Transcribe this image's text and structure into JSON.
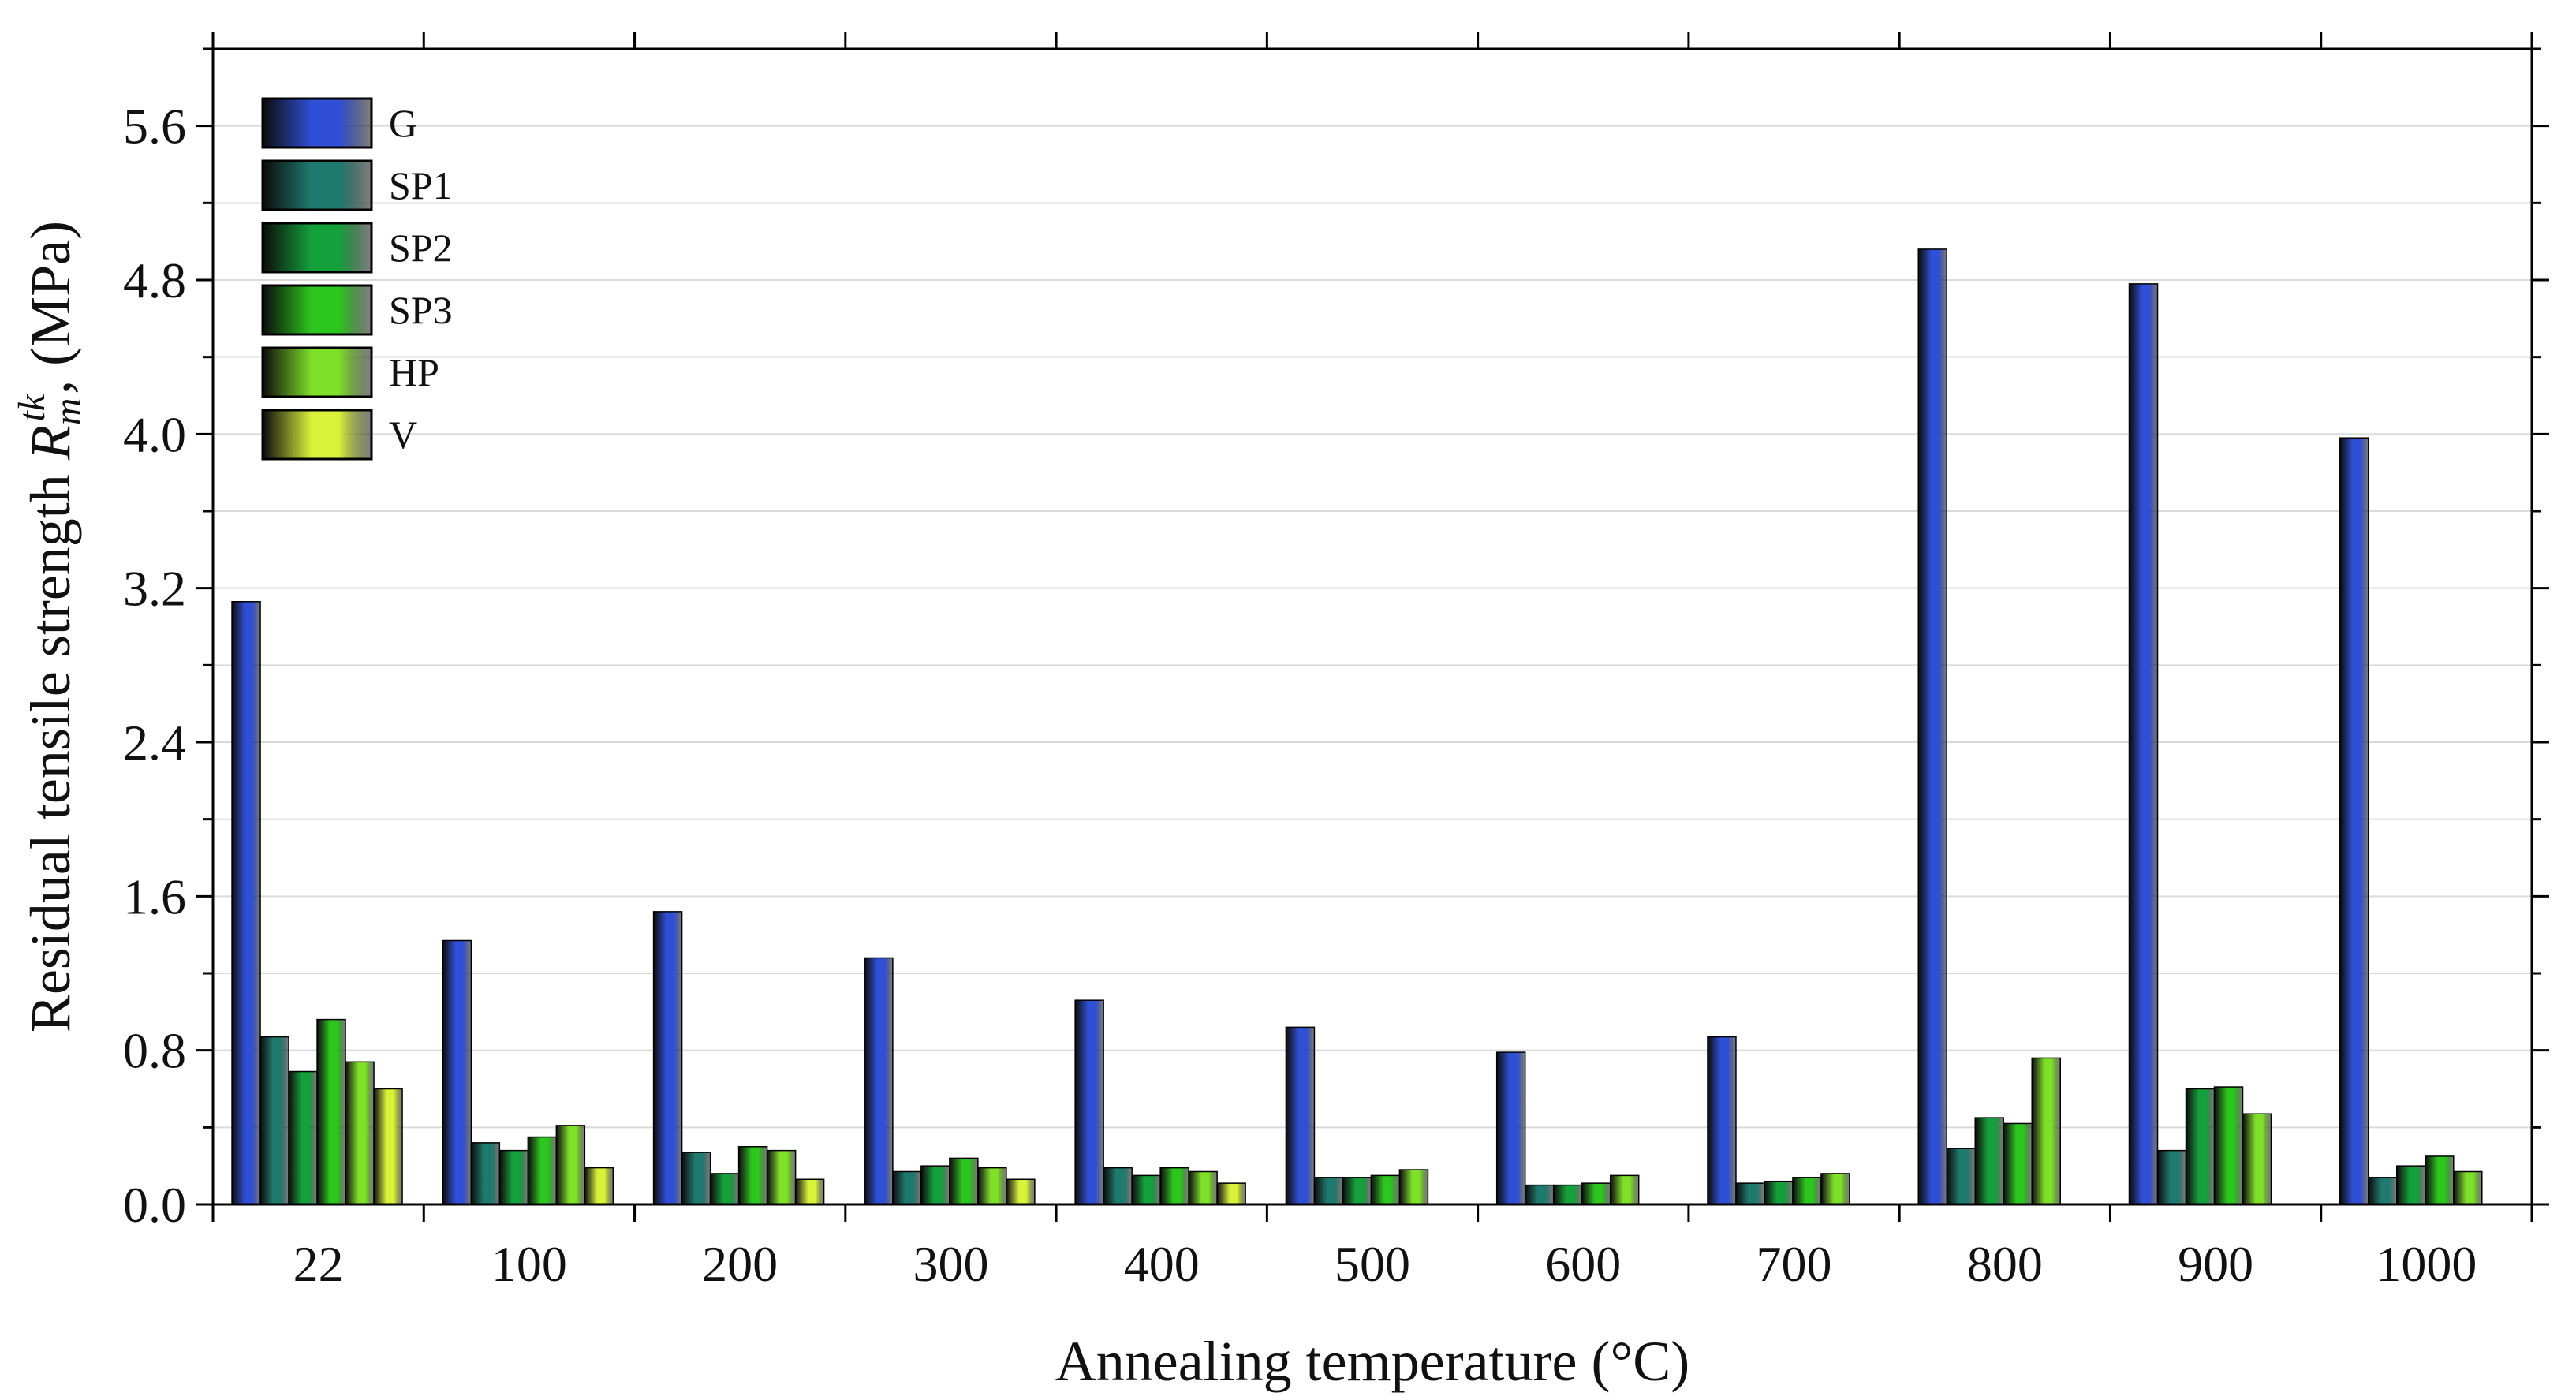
{
  "chart_data": {
    "type": "bar",
    "title": "",
    "xlabel": "Annealing temperature (°C)",
    "ylabel": {
      "prefix": "Residual tensile strength ",
      "symbol": "R",
      "subscript": "m",
      "superscript": "tk",
      "suffix": ", (MPa)"
    },
    "ylim": [
      0,
      6.0
    ],
    "yticks": [
      "0.0",
      "0.8",
      "1.6",
      "2.4",
      "3.2",
      "4.0",
      "4.8",
      "5.6"
    ],
    "grid": true,
    "legend_position": "top-left",
    "categories": [
      "22",
      "100",
      "200",
      "300",
      "400",
      "500",
      "600",
      "700",
      "800",
      "900",
      "1000"
    ],
    "series": [
      {
        "name": "G",
        "color": "#2f4fd6",
        "values": [
          3.13,
          1.37,
          1.52,
          1.28,
          1.06,
          0.92,
          0.79,
          0.87,
          4.96,
          4.78,
          3.98
        ]
      },
      {
        "name": "SP1",
        "color": "#1e7a6e",
        "values": [
          0.87,
          0.32,
          0.27,
          0.17,
          0.19,
          0.14,
          0.1,
          0.11,
          0.29,
          0.28,
          0.14
        ]
      },
      {
        "name": "SP2",
        "color": "#14a03a",
        "values": [
          0.69,
          0.28,
          0.16,
          0.2,
          0.15,
          0.14,
          0.1,
          0.12,
          0.45,
          0.6,
          0.2
        ]
      },
      {
        "name": "SP3",
        "color": "#2cc61e",
        "values": [
          0.96,
          0.35,
          0.3,
          0.24,
          0.19,
          0.15,
          0.11,
          0.14,
          0.42,
          0.61,
          0.25
        ]
      },
      {
        "name": "HP",
        "color": "#7ee028",
        "values": [
          0.74,
          0.41,
          0.28,
          0.19,
          0.17,
          0.18,
          0.15,
          0.16,
          0.76,
          0.47,
          0.17
        ]
      },
      {
        "name": "V",
        "color": "#d8f23a",
        "values": [
          0.6,
          0.19,
          0.13,
          0.13,
          0.11,
          null,
          null,
          null,
          null,
          null,
          null
        ]
      }
    ]
  }
}
